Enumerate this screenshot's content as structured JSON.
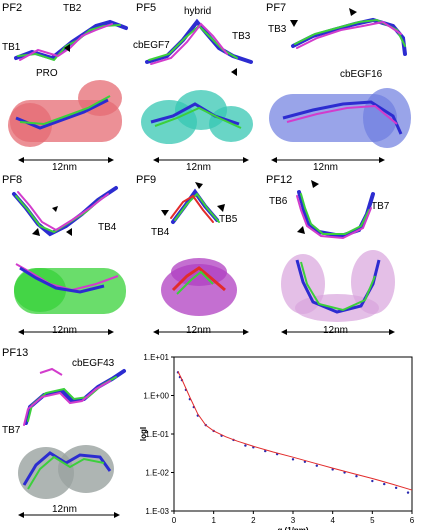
{
  "panels": [
    {
      "id": "PF2",
      "labels": [
        "TB2",
        "TB1",
        "PRO"
      ],
      "scale": "12nm",
      "surface_color": "#e56b73"
    },
    {
      "id": "PF5",
      "labels": [
        "hybrid",
        "cbEGF7",
        "TB3"
      ],
      "scale": "12nm",
      "surface_color": "#37c7b3"
    },
    {
      "id": "PF7",
      "labels": [
        "TB3",
        "cbEGF16"
      ],
      "scale": "12nm",
      "surface_color": "#6e7ee0"
    },
    {
      "id": "PF8",
      "labels": [
        "TB4"
      ],
      "scale": "12nm",
      "surface_color": "#38d23a"
    },
    {
      "id": "PF9",
      "labels": [
        "TB4",
        "TB5"
      ],
      "scale": "12nm",
      "surface_color": "#b03fc1"
    },
    {
      "id": "PF12",
      "labels": [
        "TB6",
        "TB7"
      ],
      "scale": "12nm",
      "surface_color": "#d9a4dd"
    },
    {
      "id": "PF13",
      "labels": [
        "cbEGF43",
        "TB7"
      ],
      "scale": "12nm",
      "surface_color": "#9aa3a0"
    }
  ],
  "chart_data": {
    "type": "scatter",
    "title": "",
    "xlabel": "q (1/nm)",
    "ylabel": "logI",
    "xlim": [
      0,
      6
    ],
    "ylim_log10": [
      -3,
      1
    ],
    "x_ticks": [
      "0",
      "1",
      "2",
      "3",
      "4",
      "5",
      "6"
    ],
    "y_ticks": [
      "1.E+01",
      "1.E+00",
      "1.E-01",
      "1.E-02",
      "1.E-03"
    ],
    "series": [
      {
        "kind": "points",
        "color": "#2a2ab0",
        "x": [
          0.1,
          0.15,
          0.2,
          0.3,
          0.4,
          0.5,
          0.6,
          0.8,
          1.0,
          1.2,
          1.5,
          1.8,
          2.0,
          2.3,
          2.6,
          3.0,
          3.3,
          3.6,
          4.0,
          4.3,
          4.6,
          5.0,
          5.3,
          5.6,
          5.9
        ],
        "y": [
          4,
          3,
          2.5,
          1.4,
          0.8,
          0.5,
          0.3,
          0.17,
          0.12,
          0.09,
          0.07,
          0.05,
          0.045,
          0.036,
          0.03,
          0.022,
          0.019,
          0.015,
          0.012,
          0.01,
          0.008,
          0.006,
          0.005,
          0.004,
          0.003
        ]
      },
      {
        "kind": "fit",
        "color": "#e22b2b",
        "x": [
          0.1,
          0.2,
          0.4,
          0.6,
          0.8,
          1.0,
          1.3,
          1.6,
          2.0,
          2.5,
          3.0,
          3.5,
          4.0,
          4.5,
          5.0,
          5.5,
          6.0
        ],
        "y": [
          4.2,
          2.6,
          0.9,
          0.33,
          0.17,
          0.12,
          0.085,
          0.065,
          0.048,
          0.034,
          0.025,
          0.018,
          0.013,
          0.0095,
          0.007,
          0.005,
          0.0035
        ]
      }
    ]
  }
}
